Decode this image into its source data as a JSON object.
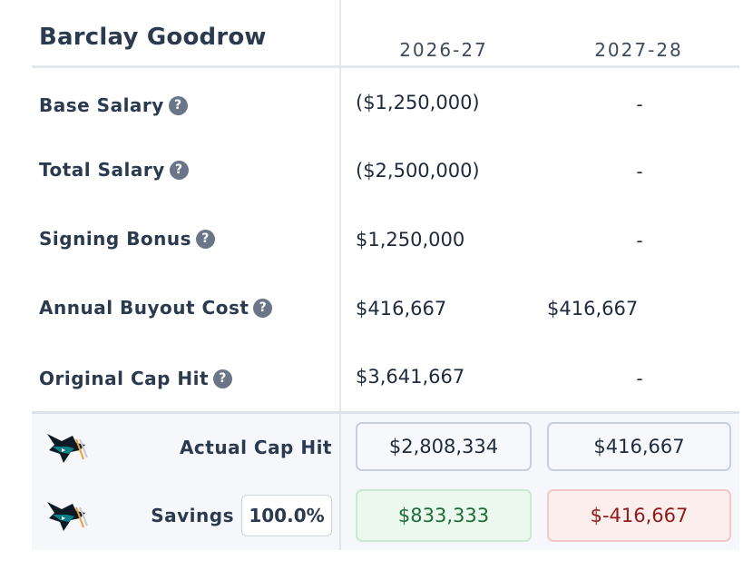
{
  "player": {
    "name": "Barclay Goodrow"
  },
  "seasons": [
    "2026-27",
    "2027-28"
  ],
  "rows": [
    {
      "label": "Base Salary",
      "values": [
        "($1,250,000)",
        "-"
      ]
    },
    {
      "label": "Total Salary",
      "values": [
        "($2,500,000)",
        "-"
      ]
    },
    {
      "label": "Signing Bonus",
      "values": [
        "$1,250,000",
        "-"
      ]
    },
    {
      "label": "Annual Buyout Cost",
      "values": [
        "$416,667",
        "$416,667"
      ]
    },
    {
      "label": "Original Cap Hit",
      "values": [
        "$3,641,667",
        "-"
      ]
    }
  ],
  "help_glyph": "?",
  "summary": {
    "actual": {
      "label": "Actual Cap Hit",
      "values": [
        "$2,808,334",
        "$416,667"
      ]
    },
    "savings": {
      "label": "Savings",
      "percent": "100.0%",
      "values": [
        "$833,333",
        "$-416,667"
      ]
    }
  },
  "icons": {
    "team_logo": "shark-logo-icon",
    "help": "question-circle-icon"
  },
  "colors": {
    "positive": "#1e6b3a",
    "negative": "#8e1a1a",
    "help_badge": "#6a7587"
  }
}
